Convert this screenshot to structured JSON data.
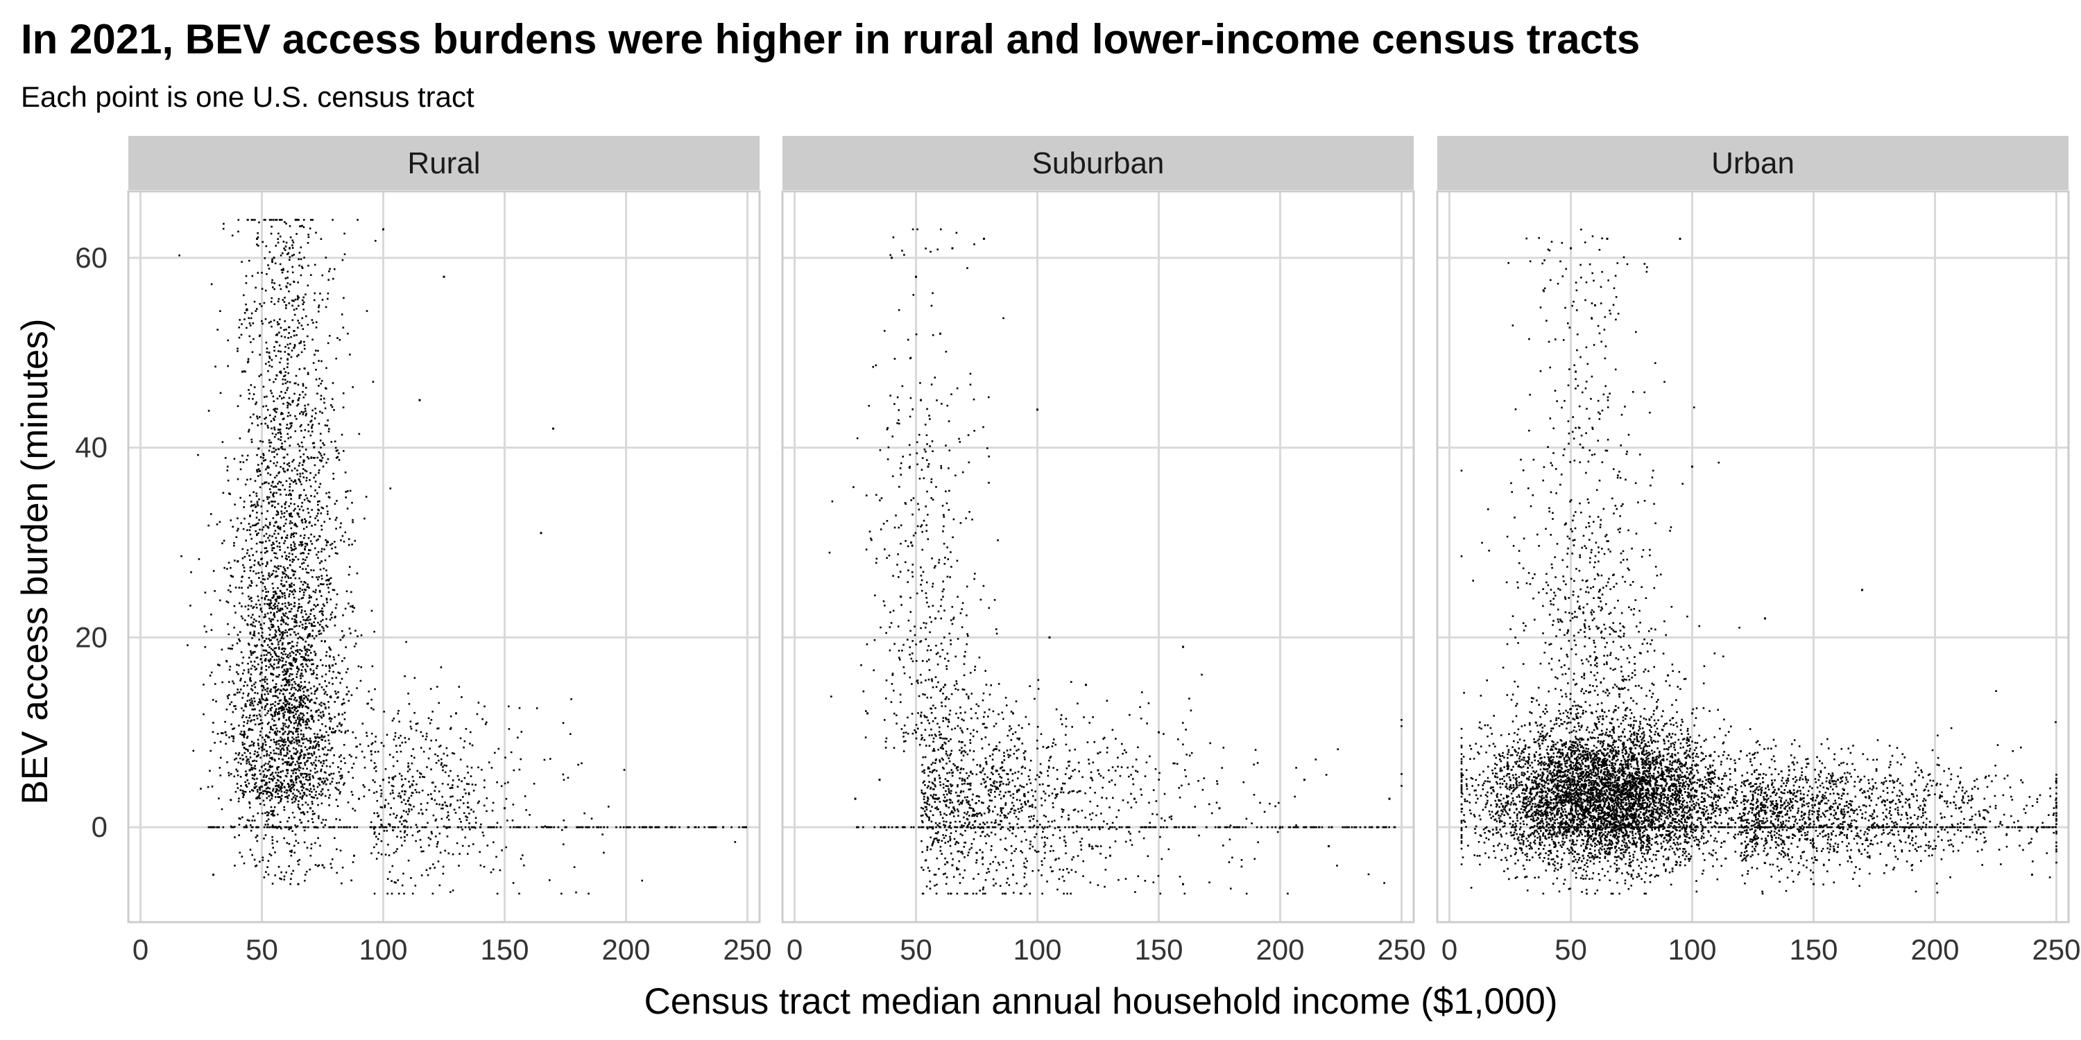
{
  "title": "In 2021, BEV access burdens were higher in rural and lower-income census tracts",
  "subtitle": "Each point is one U.S. census tract",
  "colors": {
    "point": "#000000",
    "grid": "#d9d9d9",
    "panel_border": "#cccccc",
    "strip_fill": "#cccccc",
    "background": "#ffffff"
  },
  "chart_data": {
    "type": "scatter",
    "facet_by": "urbanicity",
    "xlabel": "Census tract median annual household income ($1,000)",
    "ylabel": "BEV access burden (minutes)",
    "xlim": [
      -5,
      255
    ],
    "ylim": [
      -10,
      67
    ],
    "x_ticks": [
      0,
      50,
      100,
      150,
      200,
      250
    ],
    "y_ticks": [
      0,
      20,
      40,
      60
    ],
    "grid": true,
    "panels": [
      {
        "label": "Rural",
        "x_range": [
          5,
          250
        ],
        "y_range": [
          -7,
          64
        ],
        "points": [
          [
            62,
            0
          ],
          [
            55,
            0
          ],
          [
            72,
            0
          ],
          [
            48,
            0
          ],
          [
            85,
            0
          ],
          [
            110,
            0
          ],
          [
            140,
            0
          ],
          [
            175,
            0
          ],
          [
            210,
            0
          ],
          [
            240,
            0
          ],
          [
            58,
            3
          ],
          [
            64,
            5
          ],
          [
            70,
            2
          ],
          [
            52,
            8
          ],
          [
            66,
            12
          ],
          [
            75,
            4
          ],
          [
            45,
            6
          ],
          [
            80,
            10
          ],
          [
            90,
            3
          ],
          [
            60,
            15
          ],
          [
            55,
            20
          ],
          [
            68,
            25
          ],
          [
            50,
            30
          ],
          [
            62,
            35
          ],
          [
            58,
            40
          ],
          [
            65,
            45
          ],
          [
            53,
            50
          ],
          [
            60,
            55
          ],
          [
            55,
            60
          ],
          [
            48,
            62
          ],
          [
            72,
            22
          ],
          [
            78,
            18
          ],
          [
            85,
            14
          ],
          [
            95,
            8
          ],
          [
            100,
            5
          ],
          [
            120,
            3
          ],
          [
            130,
            12
          ],
          [
            150,
            2
          ],
          [
            165,
            31
          ],
          [
            170,
            42
          ],
          [
            35,
            10
          ],
          [
            40,
            28
          ],
          [
            42,
            48
          ],
          [
            30,
            -5
          ],
          [
            65,
            -6
          ],
          [
            75,
            -4
          ],
          [
            88,
            -3
          ],
          [
            100,
            63
          ],
          [
            125,
            58
          ],
          [
            115,
            45
          ]
        ]
      },
      {
        "label": "Suburban",
        "x_range": [
          5,
          250
        ],
        "y_range": [
          -7,
          63
        ],
        "points": [
          [
            60,
            0
          ],
          [
            80,
            0
          ],
          [
            100,
            0
          ],
          [
            130,
            0
          ],
          [
            160,
            0
          ],
          [
            200,
            0
          ],
          [
            240,
            0
          ],
          [
            45,
            0
          ],
          [
            55,
            3
          ],
          [
            70,
            5
          ],
          [
            85,
            2
          ],
          [
            95,
            8
          ],
          [
            110,
            4
          ],
          [
            125,
            6
          ],
          [
            140,
            3
          ],
          [
            175,
            2
          ],
          [
            210,
            5
          ],
          [
            245,
            3
          ],
          [
            50,
            10
          ],
          [
            62,
            15
          ],
          [
            58,
            22
          ],
          [
            48,
            30
          ],
          [
            55,
            38
          ],
          [
            52,
            45
          ],
          [
            60,
            52
          ],
          [
            50,
            58
          ],
          [
            65,
            61
          ],
          [
            78,
            62
          ],
          [
            70,
            18
          ],
          [
            90,
            12
          ],
          [
            105,
            20
          ],
          [
            120,
            15
          ],
          [
            150,
            10
          ],
          [
            160,
            19
          ],
          [
            35,
            5
          ],
          [
            30,
            12
          ],
          [
            40,
            60
          ],
          [
            100,
            44
          ],
          [
            65,
            -4
          ],
          [
            90,
            -5
          ],
          [
            130,
            -3
          ],
          [
            160,
            -6
          ],
          [
            220,
            -2
          ],
          [
            25,
            3
          ]
        ]
      },
      {
        "label": "Urban",
        "x_range": [
          5,
          250
        ],
        "y_range": [
          -7,
          63
        ],
        "points": [
          [
            40,
            2
          ],
          [
            50,
            3
          ],
          [
            60,
            1
          ],
          [
            70,
            4
          ],
          [
            80,
            2
          ],
          [
            90,
            3
          ],
          [
            100,
            1
          ],
          [
            110,
            2
          ],
          [
            120,
            1
          ],
          [
            130,
            0
          ],
          [
            45,
            6
          ],
          [
            55,
            8
          ],
          [
            65,
            5
          ],
          [
            75,
            7
          ],
          [
            85,
            5
          ],
          [
            95,
            4
          ],
          [
            105,
            3
          ],
          [
            115,
            4
          ],
          [
            125,
            2
          ],
          [
            140,
            1
          ],
          [
            150,
            0
          ],
          [
            160,
            2
          ],
          [
            170,
            1
          ],
          [
            180,
            0
          ],
          [
            190,
            1
          ],
          [
            200,
            0
          ],
          [
            210,
            2
          ],
          [
            220,
            1
          ],
          [
            230,
            0
          ],
          [
            245,
            0
          ],
          [
            50,
            12
          ],
          [
            58,
            18
          ],
          [
            62,
            25
          ],
          [
            48,
            32
          ],
          [
            55,
            40
          ],
          [
            52,
            48
          ],
          [
            60,
            55
          ],
          [
            50,
            61
          ],
          [
            65,
            62
          ],
          [
            95,
            62
          ],
          [
            70,
            14
          ],
          [
            80,
            10
          ],
          [
            90,
            16
          ],
          [
            100,
            12
          ],
          [
            120,
            8
          ],
          [
            140,
            6
          ],
          [
            160,
            5
          ],
          [
            30,
            8
          ],
          [
            35,
            3
          ],
          [
            25,
            1
          ],
          [
            55,
            -3
          ],
          [
            75,
            -5
          ],
          [
            95,
            -4
          ],
          [
            120,
            -3
          ],
          [
            150,
            -6
          ],
          [
            180,
            -4
          ],
          [
            240,
            -5
          ],
          [
            100,
            38
          ],
          [
            130,
            22
          ],
          [
            170,
            25
          ]
        ]
      }
    ]
  }
}
